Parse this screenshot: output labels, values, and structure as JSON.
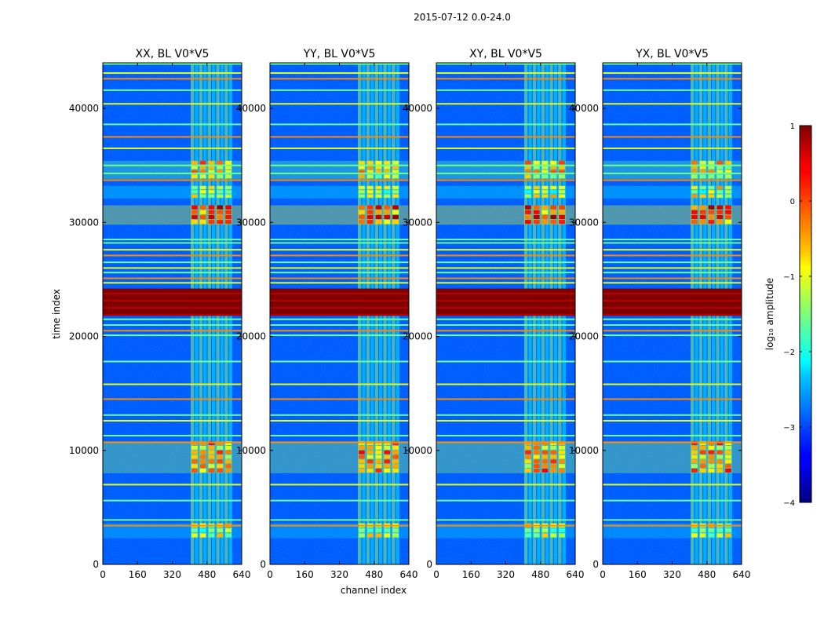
{
  "chart_data": {
    "type": "heatmap",
    "title": "2015-07-12 0.0-24.0",
    "xlabel": "channel index",
    "ylabel": "time index",
    "xlim": [
      0,
      640
    ],
    "ylim": [
      0,
      44000
    ],
    "x_ticks": [
      "0",
      "160",
      "320",
      "480",
      "640"
    ],
    "x_tick_values": [
      0,
      160,
      320,
      480,
      640
    ],
    "y_ticks": [
      "0",
      "10000",
      "20000",
      "30000",
      "40000"
    ],
    "y_tick_values": [
      0,
      10000,
      20000,
      30000,
      40000
    ],
    "panels": [
      {
        "title": "XX, BL V0*V5",
        "pol": "XX"
      },
      {
        "title": "YY, BL V0*V5",
        "pol": "YY"
      },
      {
        "title": "XY, BL V0*V5",
        "pol": "XY"
      },
      {
        "title": "YX, BL V0*V5",
        "pol": "YX"
      }
    ],
    "colorbar": {
      "label": "log₁₀ amplitude",
      "range": [
        -4,
        1
      ],
      "ticks": [
        "1",
        "0",
        "−1",
        "−2",
        "−3",
        "−4"
      ],
      "tick_values": [
        1,
        0,
        -1,
        -2,
        -3,
        -4
      ],
      "colormap": "jet"
    },
    "rfi_channel_range": [
      405,
      600
    ],
    "saturated_time_band": [
      21800,
      24200
    ],
    "strong_time_bands": [
      {
        "t0": 29800,
        "t1": 31500,
        "level": 0.2
      },
      {
        "t0": 32100,
        "t1": 33200,
        "level": -1.0
      },
      {
        "t0": 33800,
        "t1": 35400,
        "level": -0.5
      },
      {
        "t0": 8000,
        "t1": 10800,
        "level": -0.2
      },
      {
        "t0": 2300,
        "t1": 3600,
        "level": -1.1
      }
    ],
    "horizontal_lines_time": [
      3400,
      3900,
      5600,
      7000,
      10700,
      11300,
      12600,
      13100,
      14500,
      15800,
      17800,
      20100,
      20500,
      21000,
      21500,
      24700,
      25100,
      25600,
      26000,
      26500,
      27100,
      27600,
      28200,
      28500,
      33700,
      34300,
      35000,
      36500,
      37500,
      38600,
      40400,
      41600,
      42600,
      43100,
      43900
    ]
  }
}
